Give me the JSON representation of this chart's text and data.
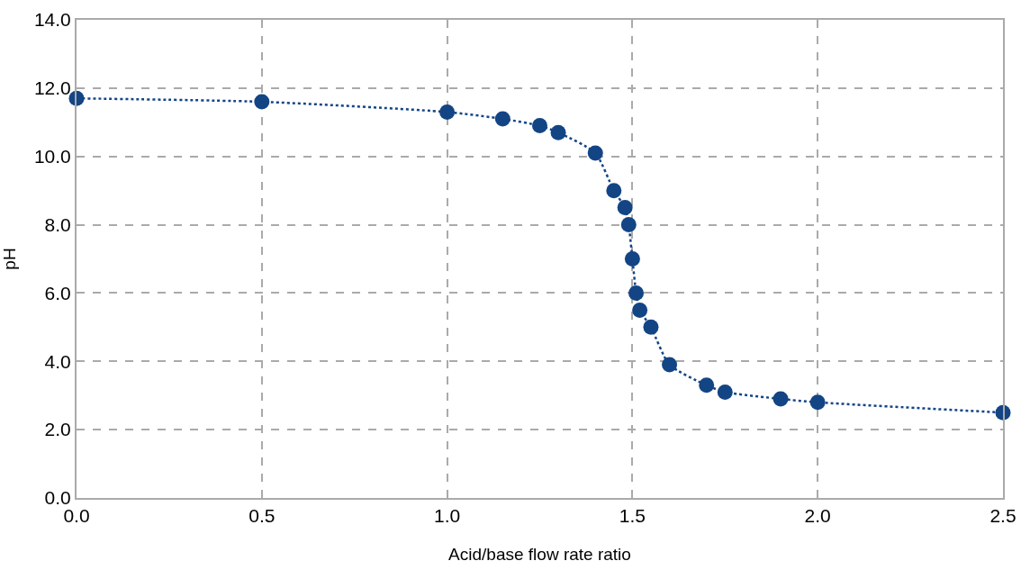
{
  "chart_data": {
    "type": "line",
    "xlabel": "Acid/base flow rate ratio",
    "ylabel": "pH",
    "x": [
      0,
      0.5,
      1.0,
      1.15,
      1.25,
      1.3,
      1.4,
      1.45,
      1.48,
      1.49,
      1.5,
      1.51,
      1.52,
      1.55,
      1.6,
      1.7,
      1.75,
      1.9,
      2.0,
      2.5
    ],
    "series": [
      {
        "color": "#134585",
        "values": [
          11.7,
          11.6,
          11.3,
          11.1,
          10.9,
          10.7,
          10.1,
          9.0,
          8.5,
          8.0,
          7.0,
          6.0,
          5.5,
          5.0,
          3.9,
          3.3,
          3.1,
          2.9,
          2.8,
          2.5
        ]
      }
    ],
    "xlim": [
      0,
      2.5
    ],
    "ylim": [
      0,
      14
    ],
    "xticks": [
      {
        "value": 0,
        "label": "0.0"
      },
      0.5,
      {
        "value": 1,
        "label": "1.0"
      },
      1.5,
      {
        "value": 2,
        "label": "2.0"
      },
      2.5
    ],
    "yticks": [
      {
        "value": 0,
        "label": "0.0"
      },
      {
        "value": 2,
        "label": "2.0"
      },
      {
        "value": 4,
        "label": "4.0"
      },
      {
        "value": 6,
        "label": "6.0"
      },
      {
        "value": 8,
        "label": "8.0"
      },
      {
        "value": 10,
        "label": "10.0"
      },
      {
        "value": 12,
        "label": "12.0"
      },
      {
        "value": 14,
        "label": "14.0"
      }
    ],
    "grid": true,
    "marker": "circle",
    "line_style": "dotted",
    "legend": false
  }
}
